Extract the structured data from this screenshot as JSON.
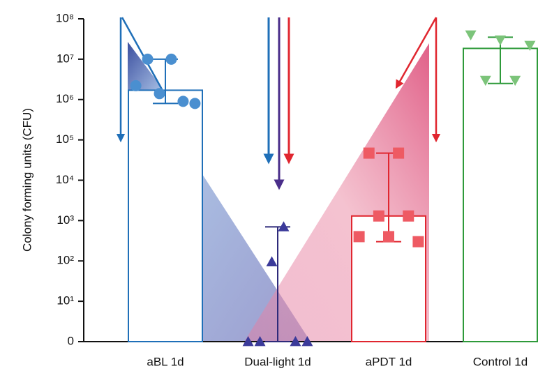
{
  "chart_data": {
    "type": "bar",
    "log_scale": true,
    "grid": false,
    "y_label": "Colony forming units (CFU)",
    "ylim": [
      1,
      100000000
    ],
    "yticks": [
      {
        "value": 1,
        "label": "0"
      },
      {
        "value": 10,
        "label": "10¹"
      },
      {
        "value": 100,
        "label": "10²"
      },
      {
        "value": 1000,
        "label": "10³"
      },
      {
        "value": 10000,
        "label": "10⁴"
      },
      {
        "value": 100000,
        "label": "10⁵"
      },
      {
        "value": 1000000,
        "label": "10⁶"
      },
      {
        "value": 10000000,
        "label": "10⁷"
      },
      {
        "value": 100000000,
        "label": "10⁸"
      }
    ],
    "series": [
      {
        "name": "aBL 1d",
        "color": "#1f6fb8",
        "marker_color": "#4a8fd0",
        "marker": "circle",
        "value": 1700000,
        "error": [
          800000,
          10000000
        ],
        "points": [
          2200000,
          10000000,
          1400000,
          10000000,
          900000,
          800000
        ]
      },
      {
        "name": "Dual-light 1d",
        "color": "#2e2a7a",
        "marker_color": "#3b3a9a",
        "marker": "triangle-up",
        "value": 1,
        "error": [
          1,
          700
        ],
        "points": [
          1,
          1,
          95,
          700,
          1,
          1
        ]
      },
      {
        "name": "aPDT 1d",
        "color": "#e0262f",
        "marker_color": "#ee5a63",
        "marker": "square",
        "value": 1300,
        "error": [
          300,
          47000
        ],
        "points": [
          400,
          47000,
          1300,
          400,
          47000,
          1300,
          300
        ]
      },
      {
        "name": "Control 1d",
        "color": "#2e9a3a",
        "marker_color": "#7cc47a",
        "marker": "triangle-down",
        "value": 18500000,
        "error": [
          2500000,
          35000000
        ],
        "points": [
          40000000,
          3000000,
          30000000,
          3000000,
          22000000
        ]
      }
    ]
  }
}
